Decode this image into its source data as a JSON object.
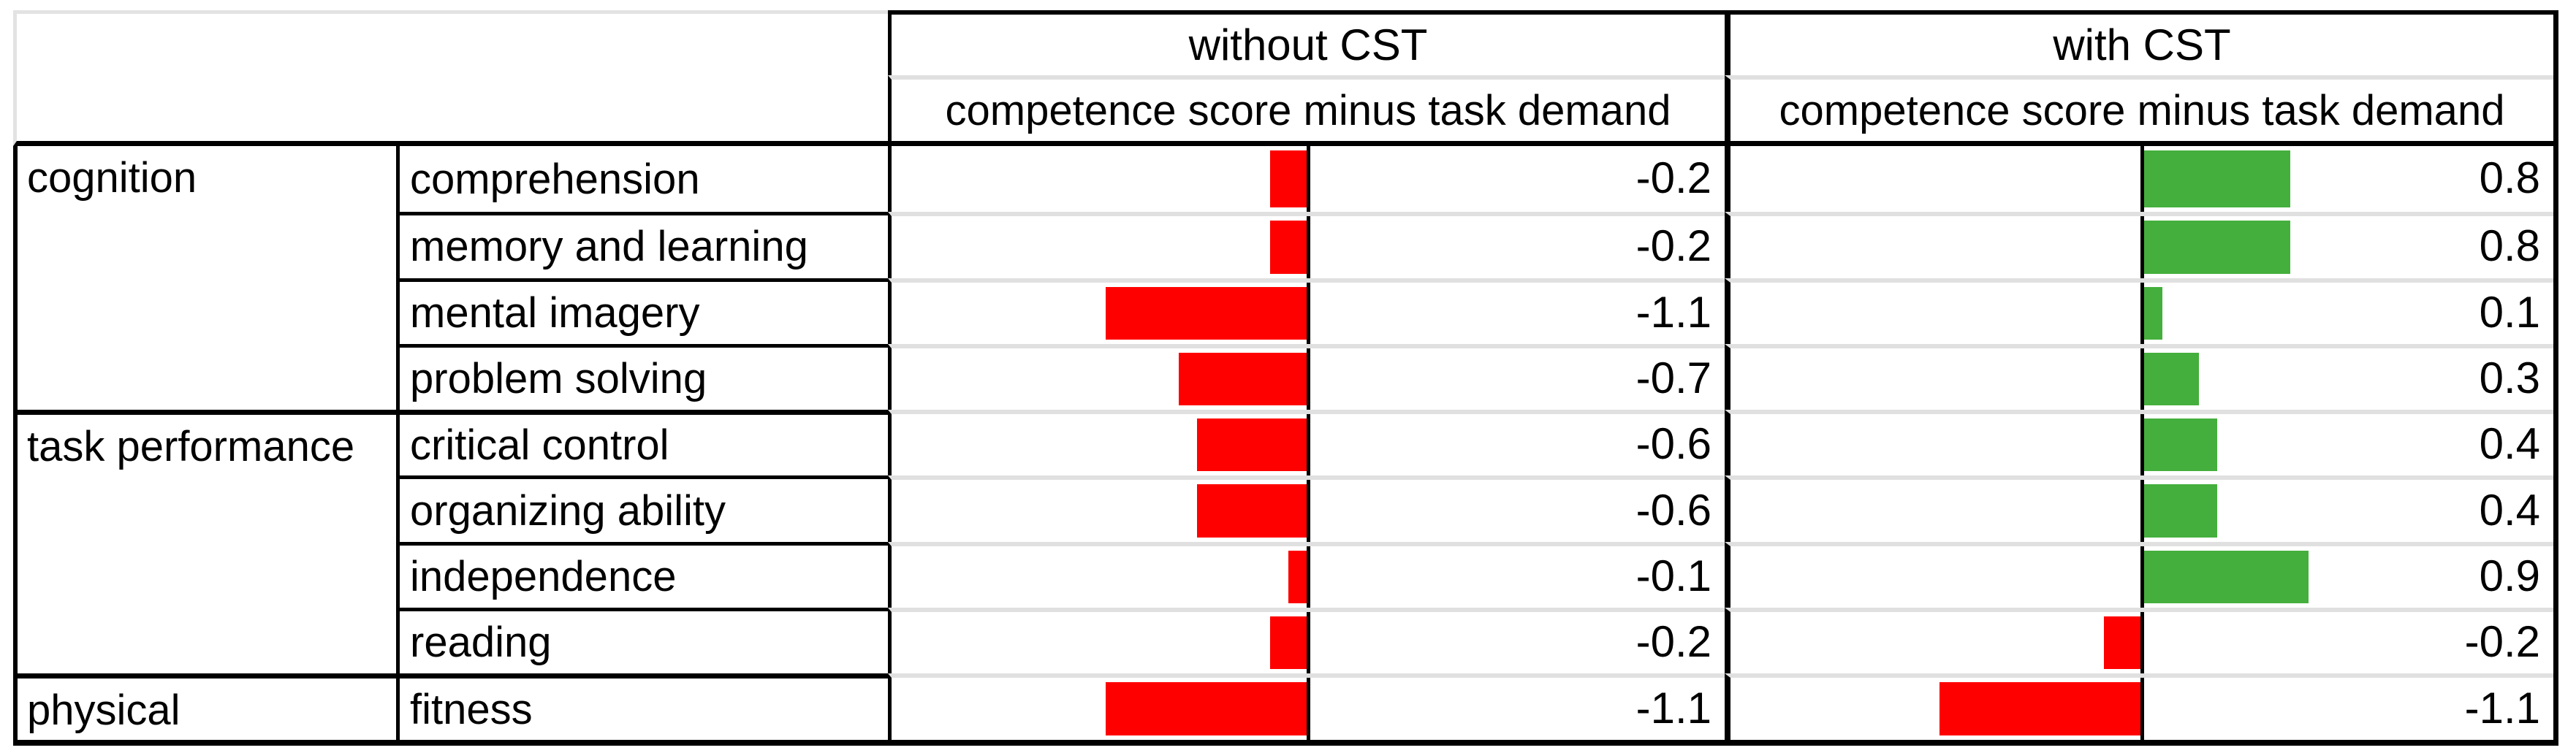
{
  "chart_data": {
    "type": "bar",
    "orientation": "horizontal",
    "title": "",
    "categories": [
      "comprehension",
      "memory and learning",
      "mental imagery",
      "problem solving",
      "critical control",
      "organizing ability",
      "independence",
      "reading",
      "fitness"
    ],
    "category_groups": [
      {
        "label": "cognition",
        "row_count": 4
      },
      {
        "label": "task performance",
        "row_count": 4
      },
      {
        "label": "physical",
        "row_count": 1
      }
    ],
    "series": [
      {
        "name": "without CST",
        "axis_label": "competence score minus task demand",
        "values": [
          -0.2,
          -0.2,
          -1.1,
          -0.7,
          -0.6,
          -0.6,
          -0.1,
          -0.2,
          -1.1
        ]
      },
      {
        "name": "with CST",
        "axis_label": "competence score minus task demand",
        "values": [
          0.8,
          0.8,
          0.1,
          0.3,
          0.4,
          0.4,
          0.9,
          -0.2,
          -1.1
        ]
      }
    ],
    "value_format": "one-decimal",
    "zero_axis": true,
    "legend_position": "none",
    "grid": "row-separators-only",
    "positive_color": "#44af3c",
    "negative_color": "#ff0000",
    "separator_color": "#e0e0e0",
    "border_color": "#000000"
  }
}
